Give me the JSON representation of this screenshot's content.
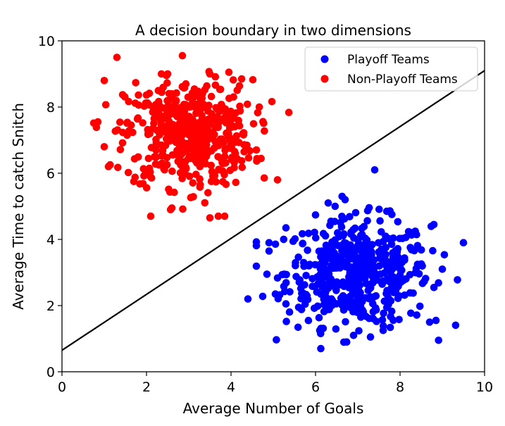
{
  "chart_data": {
    "type": "scatter",
    "title": "A decision boundary in two dimensions",
    "xlabel": "Average Number of Goals",
    "ylabel": "Average Time to catch Snitch",
    "xlim": [
      0,
      10
    ],
    "ylim": [
      0,
      10
    ],
    "x_ticks": [
      "0",
      "2",
      "4",
      "6",
      "8",
      "10"
    ],
    "y_ticks": [
      "0",
      "2",
      "4",
      "6",
      "8",
      "10"
    ],
    "legend_position": "top-right",
    "grid": false,
    "series": [
      {
        "name": "Playoff Teams",
        "color": "#0000ff",
        "center": [
          7.0,
          3.0
        ],
        "spread": [
          0.85,
          0.8
        ],
        "count": 500,
        "points": [
          [
            7.4,
            6.1
          ],
          [
            9.5,
            3.9
          ],
          [
            4.4,
            2.2
          ],
          [
            4.9,
            3.9
          ],
          [
            4.9,
            3.65
          ],
          [
            4.85,
            2.95
          ],
          [
            5.05,
            2.35
          ],
          [
            5.3,
            4.35
          ],
          [
            6.3,
            5.1
          ],
          [
            6.7,
            5.2
          ],
          [
            6.9,
            1.1
          ],
          [
            7.3,
            1.05
          ],
          [
            7.6,
            1.25
          ],
          [
            8.7,
            1.5
          ],
          [
            8.85,
            1.55
          ],
          [
            9.0,
            3.1
          ],
          [
            8.8,
            4.45
          ],
          [
            6.1,
            1.25
          ],
          [
            5.3,
            2.05
          ],
          [
            5.6,
            1.95
          ]
        ]
      },
      {
        "name": "Non-Playoff Teams",
        "color": "#ff0000",
        "center": [
          3.0,
          7.2
        ],
        "spread": [
          0.75,
          0.8
        ],
        "count": 500,
        "points": [
          [
            1.3,
            9.5
          ],
          [
            2.85,
            9.55
          ],
          [
            1.0,
            8.8
          ],
          [
            0.85,
            7.55
          ],
          [
            1.0,
            6.8
          ],
          [
            1.1,
            6.2
          ],
          [
            2.1,
            4.7
          ],
          [
            2.6,
            4.95
          ],
          [
            3.5,
            4.65
          ],
          [
            3.7,
            4.7
          ],
          [
            3.85,
            4.7
          ],
          [
            5.1,
            5.8
          ],
          [
            2.5,
            9.0
          ],
          [
            3.5,
            9.0
          ],
          [
            3.95,
            9.05
          ],
          [
            1.7,
            5.75
          ]
        ]
      }
    ],
    "decision_boundary": {
      "type": "line",
      "color": "#000000",
      "x": [
        0,
        10
      ],
      "y": [
        0.65,
        9.1
      ]
    }
  }
}
